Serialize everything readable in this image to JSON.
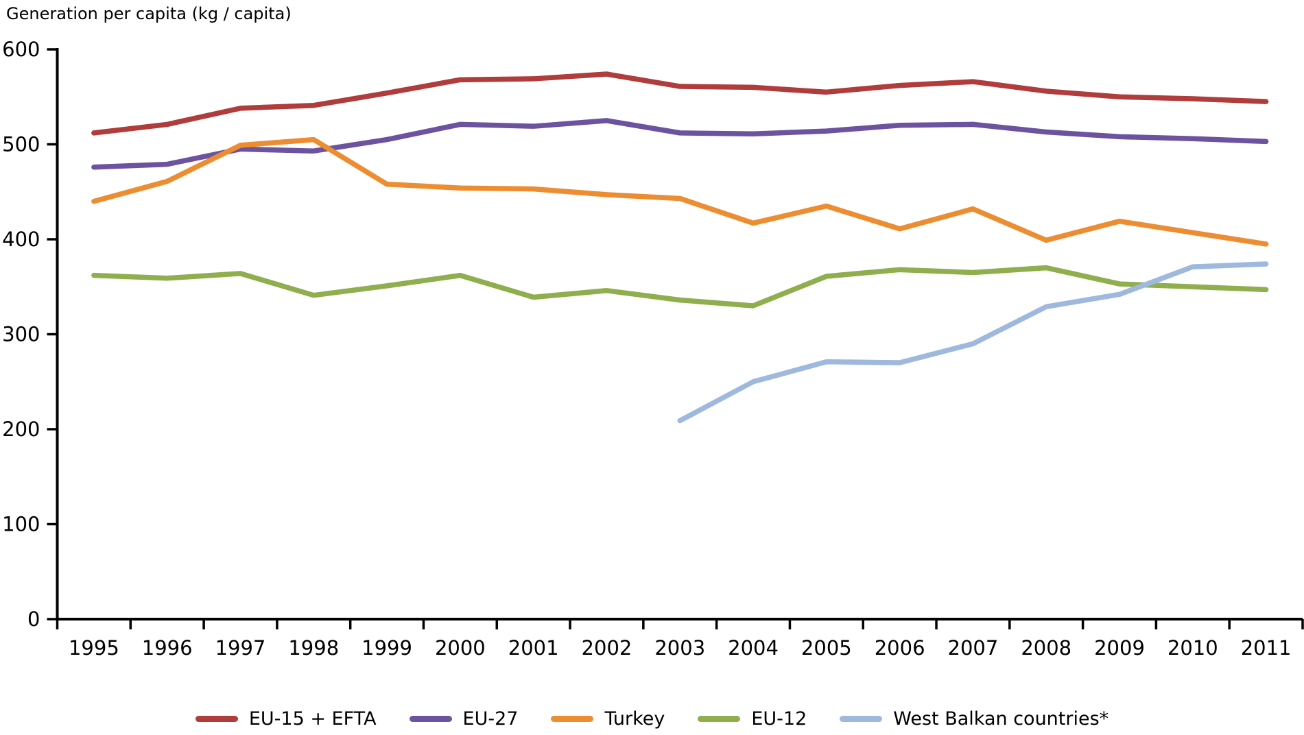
{
  "page": {
    "background_color": "#FFFFFF",
    "text_color": "#000000",
    "axis_color": "#000000"
  },
  "chart_data": {
    "type": "line",
    "title": "Generation per capita (kg / capita)",
    "xlabel": "",
    "ylabel": "",
    "x": [
      1995,
      1996,
      1997,
      1998,
      1999,
      2000,
      2001,
      2002,
      2003,
      2004,
      2005,
      2006,
      2007,
      2008,
      2009,
      2010,
      2011
    ],
    "ylim": [
      0,
      600
    ],
    "ytick_step": 100,
    "yticks": [
      0,
      100,
      200,
      300,
      400,
      500,
      600
    ],
    "grid": false,
    "legend_position": "bottom",
    "series": [
      {
        "name": "EU-15 + EFTA",
        "color": "#B03C3C",
        "values": [
          512,
          521,
          538,
          541,
          554,
          568,
          569,
          574,
          561,
          560,
          555,
          562,
          566,
          556,
          550,
          548,
          545
        ]
      },
      {
        "name": "EU-27",
        "color": "#6B53A0",
        "values": [
          476,
          479,
          495,
          493,
          505,
          521,
          519,
          525,
          512,
          511,
          514,
          520,
          521,
          513,
          508,
          506,
          503
        ]
      },
      {
        "name": "Turkey",
        "color": "#EC8D32",
        "values": [
          440,
          461,
          499,
          505,
          458,
          454,
          453,
          447,
          443,
          417,
          435,
          411,
          432,
          399,
          419,
          407,
          395
        ]
      },
      {
        "name": "EU-12",
        "color": "#8FAE4E",
        "values": [
          362,
          359,
          364,
          341,
          351,
          362,
          339,
          346,
          336,
          330,
          361,
          368,
          365,
          370,
          353,
          350,
          347
        ]
      },
      {
        "name": "West Balkan countries*",
        "color": "#9FB9DE",
        "values": [
          null,
          null,
          null,
          null,
          null,
          null,
          null,
          null,
          209,
          250,
          271,
          270,
          290,
          329,
          342,
          371,
          374
        ]
      }
    ]
  }
}
